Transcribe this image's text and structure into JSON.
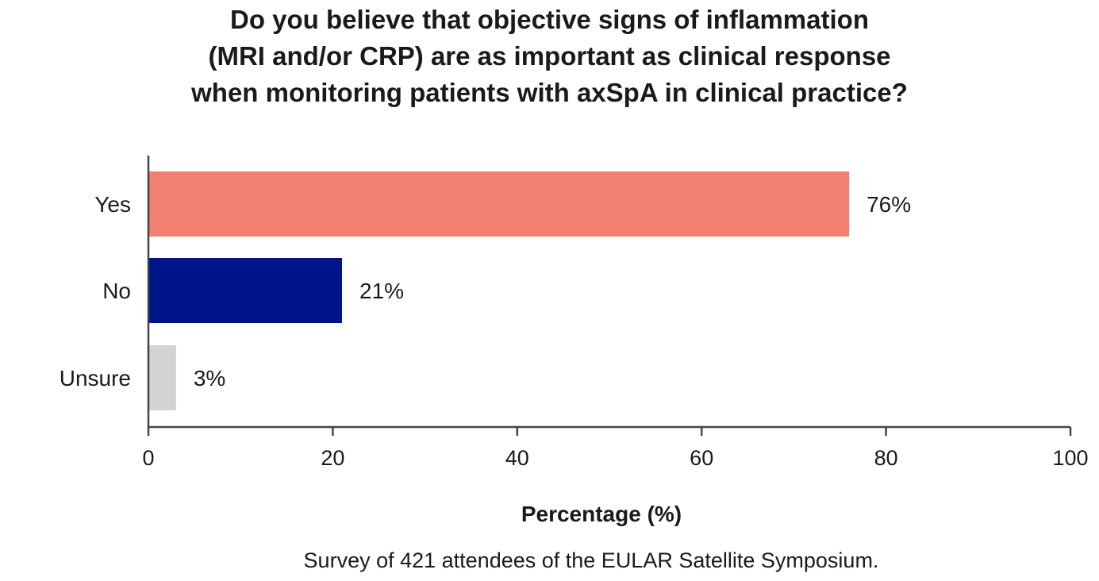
{
  "chart_data": {
    "type": "bar",
    "orientation": "horizontal",
    "title_lines": [
      "Do you believe that objective signs of inflammation",
      "(MRI and/or CRP) are as important as clinical response",
      "when monitoring patients with axSpA in clinical practice?"
    ],
    "categories": [
      "Yes",
      "No",
      "Unsure"
    ],
    "values": [
      76,
      21,
      3
    ],
    "value_labels": [
      "76%",
      "21%",
      "3%"
    ],
    "colors": [
      "#f28070",
      "#001489",
      "#d1d3d4"
    ],
    "xlabel": "Percentage (%)",
    "ylabel": "",
    "xlim": [
      0,
      100
    ],
    "xticks": [
      0,
      20,
      40,
      60,
      80,
      100
    ],
    "xtick_labels": [
      "0",
      "20",
      "40",
      "60",
      "80",
      "100"
    ],
    "grid": false,
    "caption": "Survey of 421 attendees of the EULAR Satellite Symposium."
  }
}
